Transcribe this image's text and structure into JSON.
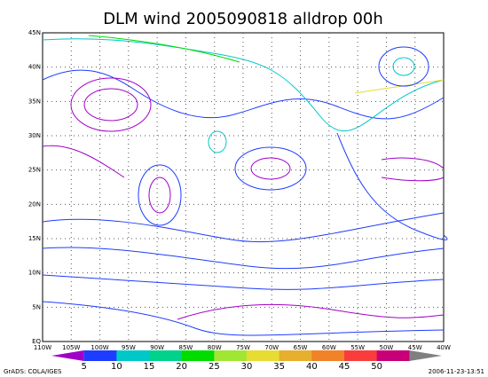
{
  "header": {
    "title": "DLM wind 2005090818 alldrop 00h"
  },
  "map": {
    "lat_labels": [
      "EQ",
      "5N",
      "10N",
      "15N",
      "20N",
      "25N",
      "30N",
      "35N",
      "40N",
      "45N"
    ],
    "lon_labels": [
      "110W",
      "105W",
      "100W",
      "95W",
      "90W",
      "85W",
      "80W",
      "75W",
      "70W",
      "65W",
      "60W",
      "55W",
      "50W",
      "45W",
      "40W"
    ]
  },
  "colorbar": {
    "labels": [
      "5",
      "10",
      "15",
      "20",
      "25",
      "30",
      "35",
      "40",
      "45",
      "50"
    ],
    "colors": [
      "#a000c8",
      "#1e3cff",
      "#00c8c8",
      "#00d28c",
      "#00dc00",
      "#a0e632",
      "#e6dc32",
      "#e6af2d",
      "#f08228",
      "#fa3c3c",
      "#c80078",
      "#808080"
    ]
  },
  "footer": {
    "left": "GrADS: COLA/IGES",
    "right": "2006-11-23-13:51"
  }
}
